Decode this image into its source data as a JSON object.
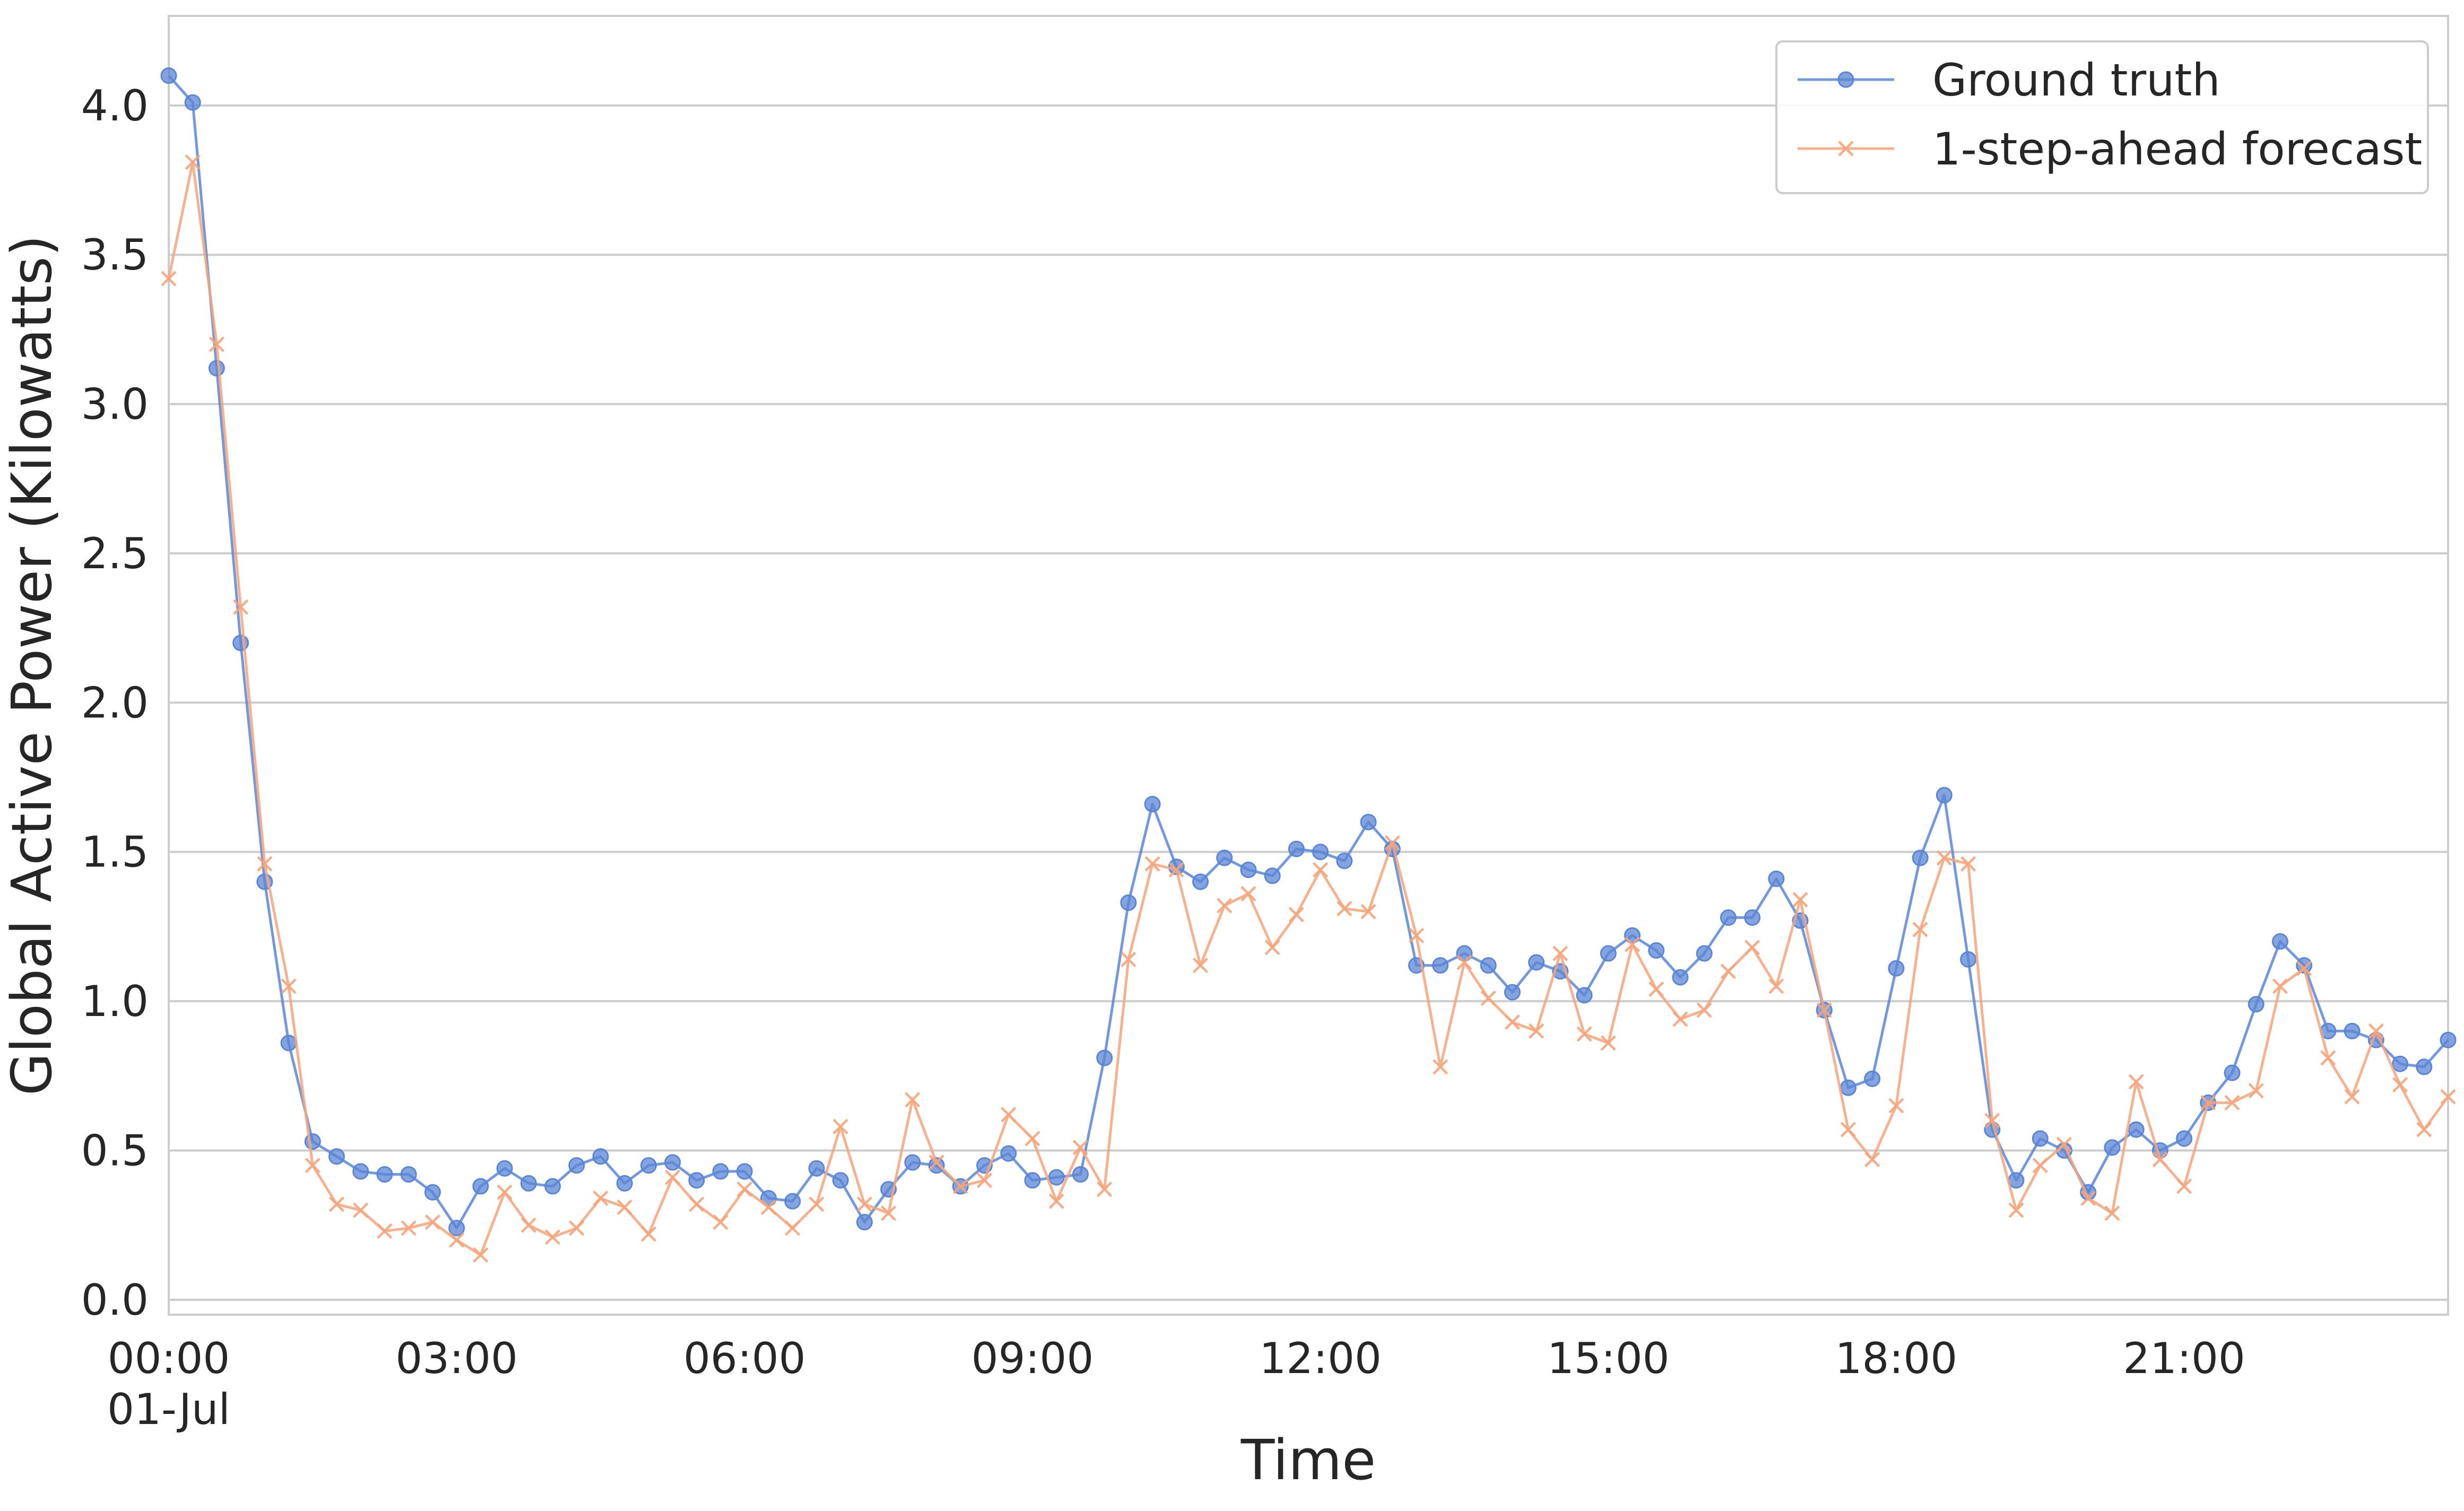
{
  "chart_data": {
    "type": "line",
    "title": "",
    "xlabel": "Time",
    "ylabel": "Global Active Power (Kilowatts)",
    "x_unit": "hours since 00:00 01-Jul",
    "x_step_hours": 0.25,
    "xlim": [
      0,
      23.75
    ],
    "ylim": [
      -0.05,
      4.3
    ],
    "grid": {
      "x": false,
      "y": true
    },
    "legend_position": "top-right",
    "xticks": [
      {
        "value": 0,
        "label": "00:00",
        "sublabel": "01-Jul"
      },
      {
        "value": 3,
        "label": "03:00"
      },
      {
        "value": 6,
        "label": "06:00"
      },
      {
        "value": 9,
        "label": "09:00"
      },
      {
        "value": 12,
        "label": "12:00"
      },
      {
        "value": 15,
        "label": "15:00"
      },
      {
        "value": 18,
        "label": "18:00"
      },
      {
        "value": 21,
        "label": "21:00"
      }
    ],
    "yticks": [
      {
        "value": 0.0,
        "label": "0.0"
      },
      {
        "value": 0.5,
        "label": "0.5"
      },
      {
        "value": 1.0,
        "label": "1.0"
      },
      {
        "value": 1.5,
        "label": "1.5"
      },
      {
        "value": 2.0,
        "label": "2.0"
      },
      {
        "value": 2.5,
        "label": "2.5"
      },
      {
        "value": 3.0,
        "label": "3.0"
      },
      {
        "value": 3.5,
        "label": "3.5"
      },
      {
        "value": 4.0,
        "label": "4.0"
      }
    ],
    "series": [
      {
        "name": "Ground truth",
        "color": "#5b86d6",
        "marker": "circle",
        "values": [
          4.1,
          4.01,
          3.12,
          2.2,
          1.4,
          0.86,
          0.53,
          0.48,
          0.43,
          0.42,
          0.42,
          0.36,
          0.24,
          0.38,
          0.44,
          0.39,
          0.38,
          0.45,
          0.48,
          0.39,
          0.45,
          0.46,
          0.4,
          0.43,
          0.43,
          0.34,
          0.33,
          0.44,
          0.4,
          0.26,
          0.37,
          0.46,
          0.45,
          0.38,
          0.45,
          0.49,
          0.4,
          0.41,
          0.42,
          0.81,
          1.33,
          1.66,
          1.45,
          1.4,
          1.48,
          1.44,
          1.42,
          1.51,
          1.5,
          1.47,
          1.6,
          1.51,
          1.12,
          1.12,
          1.16,
          1.12,
          1.03,
          1.13,
          1.1,
          1.02,
          1.16,
          1.22,
          1.17,
          1.08,
          1.16,
          1.28,
          1.28,
          1.41,
          1.27,
          0.97,
          0.71,
          0.74,
          1.11,
          1.48,
          1.69,
          1.14,
          0.57,
          0.4,
          0.54,
          0.5,
          0.36,
          0.51,
          0.57,
          0.5,
          0.54,
          0.66,
          0.76,
          0.99,
          1.2,
          1.12,
          0.9,
          0.9,
          0.87,
          0.79,
          0.78,
          0.87
        ]
      },
      {
        "name": "1-step-ahead forecast",
        "color": "#f4a47b",
        "marker": "x",
        "values": [
          3.42,
          3.81,
          3.2,
          2.32,
          1.46,
          1.05,
          0.45,
          0.32,
          0.3,
          0.23,
          0.24,
          0.26,
          0.2,
          0.15,
          0.36,
          0.25,
          0.21,
          0.24,
          0.34,
          0.31,
          0.22,
          0.41,
          0.32,
          0.26,
          0.37,
          0.31,
          0.24,
          0.32,
          0.58,
          0.32,
          0.29,
          0.67,
          0.46,
          0.38,
          0.4,
          0.62,
          0.54,
          0.33,
          0.51,
          0.37,
          1.14,
          1.46,
          1.44,
          1.12,
          1.32,
          1.36,
          1.18,
          1.29,
          1.44,
          1.31,
          1.3,
          1.53,
          1.22,
          0.78,
          1.13,
          1.01,
          0.93,
          0.9,
          1.16,
          0.89,
          0.86,
          1.19,
          1.04,
          0.94,
          0.97,
          1.1,
          1.18,
          1.05,
          1.34,
          0.97,
          0.57,
          0.47,
          0.65,
          1.24,
          1.48,
          1.46,
          0.6,
          0.3,
          0.45,
          0.52,
          0.34,
          0.29,
          0.73,
          0.47,
          0.38,
          0.66,
          0.66,
          0.7,
          1.05,
          1.11,
          0.81,
          0.68,
          0.9,
          0.72,
          0.57,
          0.68
        ]
      }
    ]
  }
}
